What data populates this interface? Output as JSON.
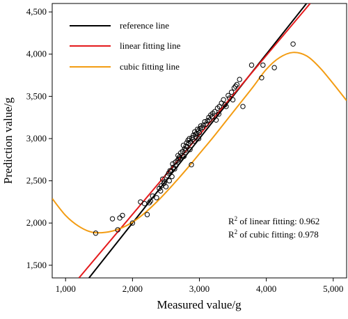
{
  "chart_data": {
    "type": "scatter",
    "title": "",
    "xlabel": "Measured value/g",
    "ylabel": "Prediction value/g",
    "xlim": [
      800,
      5200
    ],
    "ylim": [
      1350,
      4600
    ],
    "grid": false,
    "legend_position": "top-left",
    "x_ticks": [
      1000,
      2000,
      3000,
      4000,
      5000
    ],
    "x_tick_labels": [
      "1,000",
      "2,000",
      "3,000",
      "4,000",
      "5,000"
    ],
    "y_ticks": [
      1500,
      2000,
      2500,
      3000,
      3500,
      4000,
      4500
    ],
    "y_tick_labels": [
      "1,500",
      "2,000",
      "2,500",
      "3,000",
      "3,500",
      "4,000",
      "4,500"
    ],
    "annotations": [
      {
        "prefix": "R",
        "sup": "2",
        "text": " of linear fitting: 0.962"
      },
      {
        "prefix": "R",
        "sup": "2",
        "text": " of cubic fitting: 0.978"
      }
    ],
    "series": [
      {
        "name": "reference line",
        "kind": "line",
        "color": "#000000",
        "x": [
          800,
          5200
        ],
        "y": [
          800,
          5200
        ]
      },
      {
        "name": "linear fitting line",
        "kind": "line",
        "color": "#e41a1c",
        "x": [
          1200,
          4655
        ],
        "y": [
          1350,
          4600
        ]
      },
      {
        "name": "cubic fitting line",
        "kind": "curve",
        "color": "#f39c12",
        "x": [
          800,
          1000,
          1200,
          1400,
          1600,
          1800,
          2000,
          2200,
          2400,
          2600,
          2800,
          3000,
          3200,
          3400,
          3600,
          3800,
          4000,
          4200,
          4400,
          4600,
          4800,
          5000,
          5200
        ],
        "y": [
          2290,
          2090,
          1960,
          1890,
          1890,
          1930,
          2010,
          2130,
          2280,
          2450,
          2630,
          2820,
          3010,
          3210,
          3410,
          3610,
          3820,
          3960,
          4020,
          3980,
          3840,
          3650,
          3450
        ]
      },
      {
        "name": "",
        "kind": "points",
        "x": [
          1450,
          1700,
          1780,
          1810,
          1850,
          2000,
          2120,
          2180,
          2220,
          2250,
          2270,
          2300,
          2360,
          2400,
          2420,
          2430,
          2450,
          2470,
          2480,
          2500,
          2520,
          2540,
          2550,
          2560,
          2570,
          2590,
          2600,
          2610,
          2630,
          2640,
          2650,
          2670,
          2680,
          2690,
          2700,
          2710,
          2720,
          2740,
          2750,
          2760,
          2770,
          2780,
          2790,
          2800,
          2810,
          2820,
          2830,
          2840,
          2850,
          2860,
          2870,
          2880,
          2890,
          2900,
          2910,
          2920,
          2930,
          2940,
          2950,
          2960,
          2970,
          2980,
          2990,
          3000,
          3010,
          3020,
          3040,
          3060,
          3080,
          3100,
          3120,
          3140,
          3150,
          3170,
          3190,
          3200,
          3230,
          3250,
          3270,
          3290,
          3300,
          3330,
          3360,
          3380,
          3400,
          3430,
          3450,
          3480,
          3500,
          3520,
          3540,
          3560,
          3600,
          3650,
          3780,
          3930,
          3950,
          4120,
          4400
        ],
        "y": [
          1880,
          2050,
          1920,
          2060,
          2090,
          2000,
          2250,
          2230,
          2100,
          2240,
          2260,
          2320,
          2300,
          2410,
          2380,
          2440,
          2520,
          2470,
          2490,
          2430,
          2560,
          2590,
          2500,
          2620,
          2610,
          2550,
          2700,
          2660,
          2640,
          2720,
          2680,
          2740,
          2800,
          2760,
          2780,
          2760,
          2830,
          2800,
          2850,
          2920,
          2790,
          2880,
          2860,
          2910,
          2950,
          2900,
          2980,
          2940,
          3000,
          2870,
          2960,
          2690,
          3010,
          2990,
          3040,
          2970,
          3080,
          3050,
          3020,
          3060,
          3110,
          3090,
          3000,
          3070,
          3120,
          3150,
          3130,
          3160,
          3200,
          3170,
          3210,
          3250,
          3220,
          3280,
          3260,
          3300,
          3320,
          3220,
          3360,
          3290,
          3380,
          3420,
          3460,
          3400,
          3380,
          3510,
          3480,
          3550,
          3460,
          3600,
          3620,
          3640,
          3700,
          3380,
          3870,
          3720,
          3870,
          3840,
          4120
        ]
      }
    ]
  }
}
